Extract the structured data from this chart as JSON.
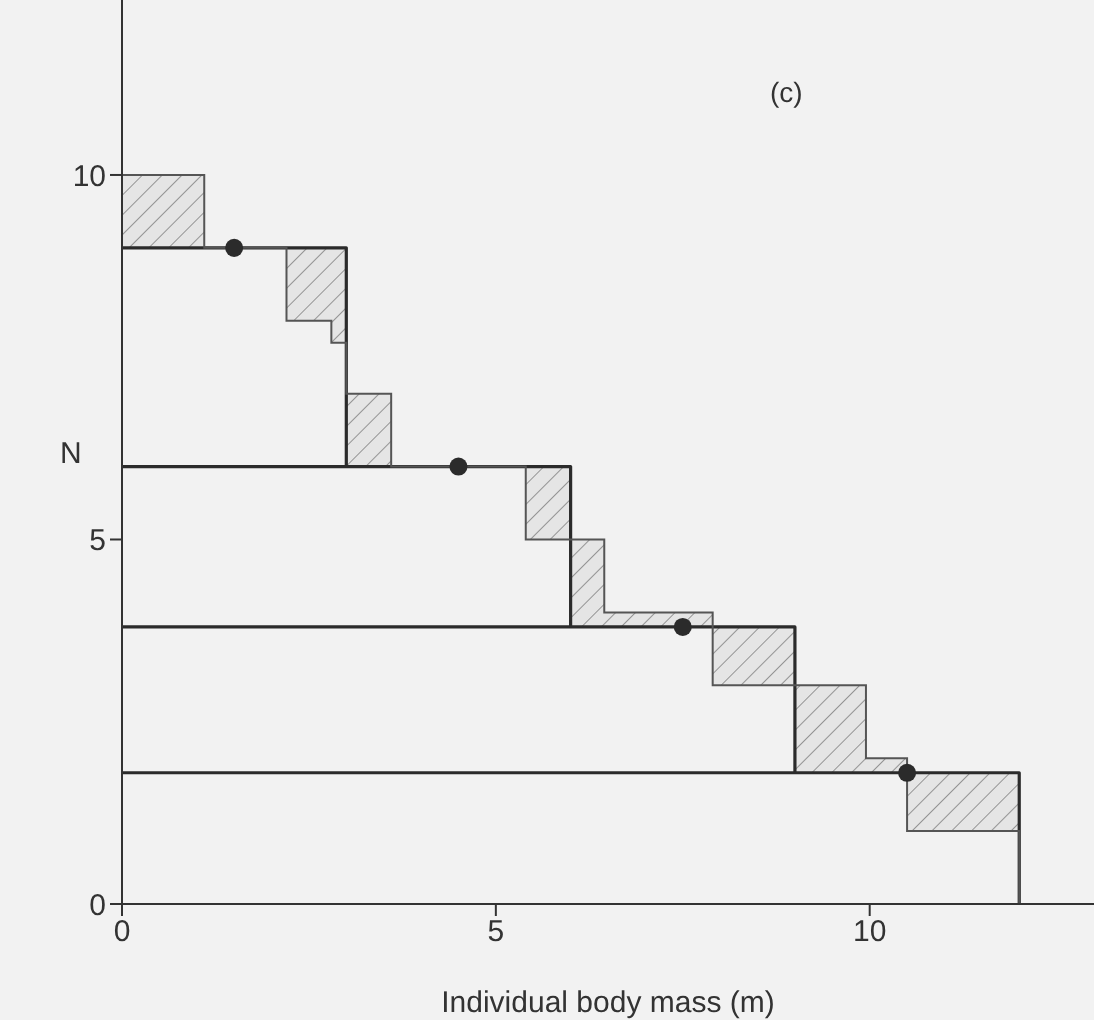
{
  "chart_data": {
    "type": "line",
    "xlabel": "Individual body mass (m)",
    "ylabel": "N",
    "annotations": [
      "(c)"
    ],
    "xlim": [
      0,
      13
    ],
    "ylim": [
      0,
      12.4
    ],
    "xticks": [
      0,
      5,
      10
    ],
    "yticks": [
      0,
      5,
      10
    ],
    "grid": false,
    "series": [
      {
        "x": [
          0,
          3,
          3,
          0,
          6,
          6,
          0,
          9,
          9,
          0,
          12,
          12
        ],
        "values": [
          9,
          9,
          6,
          6,
          6,
          3.8,
          3.8,
          3.8,
          1.8,
          1.8,
          1.8,
          0
        ],
        "color": "#2b2b2b"
      },
      {
        "type": "step",
        "x": [
          0,
          1.1,
          2.2,
          2.8,
          3,
          3.6,
          5.4,
          6,
          6.45,
          7.9,
          9,
          9.95,
          10.5,
          12
        ],
        "values": [
          10,
          9,
          8,
          7.7,
          7,
          6,
          5,
          5,
          4,
          3,
          3,
          2,
          1,
          0
        ],
        "lower": [
          9,
          9,
          8,
          7.7,
          6,
          6,
          5,
          3.8,
          3.8,
          3,
          1.8,
          1.8,
          1,
          0
        ],
        "upper": [
          10,
          9,
          9,
          9,
          7,
          6,
          6,
          5,
          4,
          3.8,
          3,
          2,
          1.8,
          0
        ],
        "color": "#555555"
      },
      {
        "type": "scatter",
        "x": [
          1.5,
          4.5,
          7.5,
          10.5
        ],
        "values": [
          9,
          6,
          3.8,
          1.8
        ],
        "color": "#2b2b2b",
        "marker": "circle"
      }
    ]
  }
}
